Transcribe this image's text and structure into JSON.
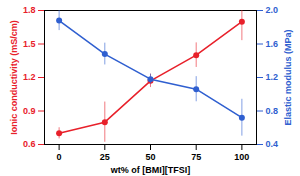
{
  "chart_data": {
    "type": "line",
    "x_label": "wt% of [BMI][TFSI]",
    "y_label": "Ionic conductivity (mS/cm)",
    "y2_label": "Elastic modulus (MPa)",
    "x": [
      0,
      25,
      50,
      75,
      100
    ],
    "xlim": [
      -8,
      108
    ],
    "xticks": [
      0,
      25,
      50,
      75,
      100
    ],
    "ylim": [
      0.6,
      1.8
    ],
    "yticks": [
      0.6,
      0.9,
      1.2,
      1.5,
      1.8
    ],
    "y2lim": [
      0.4,
      2.0
    ],
    "y2ticks": [
      0.4,
      0.8,
      1.2,
      1.6,
      {
        "value": 2,
        "label": "2.0"
      }
    ],
    "grid": false,
    "series": [
      {
        "name": "Ionic conductivity",
        "color": "#e8202a",
        "marker": "circle",
        "axis": "y",
        "values": [
          0.7,
          0.8,
          1.17,
          1.4,
          1.7
        ],
        "errors": [
          0.05,
          0.18,
          0.06,
          0.11,
          0.17
        ]
      },
      {
        "name": "Elastic modulus",
        "color": "#2f5fd0",
        "marker": "circle",
        "axis": "y2",
        "values": [
          1.88,
          1.48,
          1.18,
          1.06,
          0.72
        ],
        "errors": [
          0.12,
          0.13,
          0.06,
          0.15,
          0.22
        ]
      }
    ]
  }
}
